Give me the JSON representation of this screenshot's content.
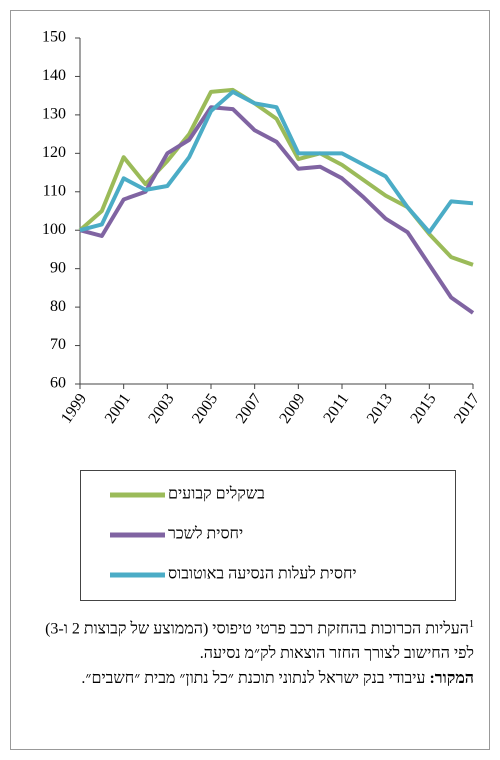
{
  "chart_data": {
    "type": "line",
    "x": [
      1999,
      2000,
      2001,
      2002,
      2003,
      2004,
      2005,
      2006,
      2007,
      2008,
      2009,
      2010,
      2011,
      2012,
      2013,
      2014,
      2015,
      2016,
      2017
    ],
    "xlim": [
      1999,
      2017
    ],
    "xticks": [
      1999,
      2001,
      2003,
      2005,
      2007,
      2009,
      2011,
      2013,
      2015,
      2017
    ],
    "ylim": [
      60,
      150
    ],
    "yticks": [
      60,
      70,
      80,
      90,
      100,
      110,
      120,
      130,
      140,
      150
    ],
    "series": [
      {
        "name": "בשקלים קבועים",
        "color": "#9bbb59",
        "values": [
          100,
          105,
          119,
          112,
          118,
          125,
          136,
          136.5,
          133,
          129,
          118.5,
          120,
          117,
          113,
          109,
          106,
          99,
          93,
          91
        ]
      },
      {
        "name": "יחסית לשכר",
        "color": "#8064a2",
        "values": [
          100,
          98.5,
          108,
          110,
          120,
          123.5,
          132,
          131.5,
          126,
          123,
          116,
          116.5,
          113.5,
          108.5,
          103,
          99.5,
          91,
          82.5,
          78.5
        ]
      },
      {
        "name": "יחסית לעלות הנסיעה באוטובוס",
        "color": "#4bacc6",
        "values": [
          100,
          101.5,
          113.5,
          110.5,
          111.5,
          119,
          131,
          136,
          133,
          132,
          120,
          120,
          120,
          117,
          114,
          106,
          99.5,
          107.5,
          107
        ]
      }
    ]
  },
  "notes": {
    "footnote_marker": "1",
    "footnote": "העליות הכרוכות בהחזקת רכב פרטי טיפוסי (הממוצע של קבוצות 2 ו-3) לפי החישוב לצורך החזר הוצאות לק״מ נסיעה.",
    "source_label": "המקור:",
    "source": "עיבודי בנק ישראל לנתוני תוכנת ״כל נתון״ מבית ״חשבים״."
  }
}
